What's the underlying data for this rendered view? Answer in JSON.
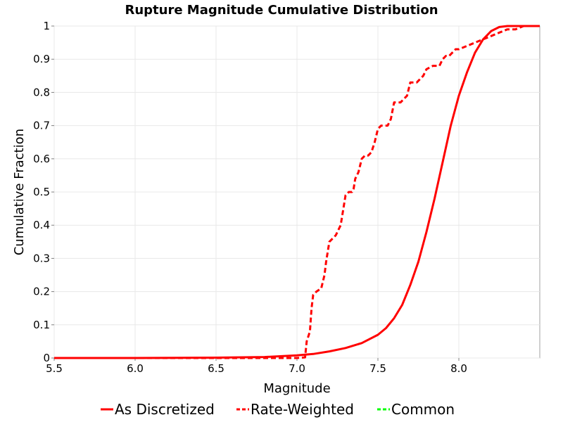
{
  "chart_data": {
    "type": "line",
    "title": "Rupture Magnitude Cumulative Distribution",
    "xlabel": "Magnitude",
    "ylabel": "Cumulative Fraction",
    "xlim": [
      5.5,
      8.5
    ],
    "ylim": [
      0,
      1
    ],
    "x_ticks": [
      "5.5",
      "6.0",
      "6.5",
      "7.0",
      "7.5",
      "8.0"
    ],
    "y_ticks": [
      "0",
      "0.1",
      "0.2",
      "0.3",
      "0.4",
      "0.5",
      "0.6",
      "0.7",
      "0.8",
      "0.9",
      "1"
    ],
    "x_tick_values": [
      5.5,
      6.0,
      6.5,
      7.0,
      7.5,
      8.0
    ],
    "y_tick_values": [
      0,
      0.1,
      0.2,
      0.3,
      0.4,
      0.5,
      0.6,
      0.7,
      0.8,
      0.9,
      1
    ],
    "grid": true,
    "legend_position": "bottom",
    "series": [
      {
        "name": "As Discretized",
        "color": "#ff0000",
        "style": "solid",
        "x": [
          5.5,
          6.0,
          6.5,
          6.8,
          7.0,
          7.1,
          7.2,
          7.3,
          7.4,
          7.5,
          7.55,
          7.6,
          7.65,
          7.7,
          7.75,
          7.8,
          7.85,
          7.9,
          7.95,
          8.0,
          8.05,
          8.1,
          8.15,
          8.2,
          8.25,
          8.3,
          8.5
        ],
        "y": [
          0.0,
          0.0,
          0.001,
          0.003,
          0.008,
          0.012,
          0.02,
          0.03,
          0.045,
          0.07,
          0.09,
          0.12,
          0.16,
          0.22,
          0.29,
          0.38,
          0.48,
          0.59,
          0.7,
          0.79,
          0.86,
          0.92,
          0.96,
          0.985,
          0.997,
          1.0,
          1.0
        ]
      },
      {
        "name": "Rate-Weighted",
        "color": "#ff0000",
        "style": "dashed",
        "x": [
          5.5,
          6.5,
          7.0,
          7.05,
          7.06,
          7.08,
          7.09,
          7.1,
          7.12,
          7.15,
          7.17,
          7.18,
          7.2,
          7.22,
          7.24,
          7.26,
          7.27,
          7.28,
          7.3,
          7.32,
          7.34,
          7.35,
          7.36,
          7.38,
          7.4,
          7.42,
          7.44,
          7.46,
          7.48,
          7.5,
          7.52,
          7.54,
          7.56,
          7.58,
          7.6,
          7.62,
          7.64,
          7.66,
          7.68,
          7.7,
          7.72,
          7.74,
          7.76,
          7.78,
          7.8,
          7.84,
          7.86,
          7.88,
          7.9,
          7.92,
          7.94,
          7.96,
          7.98,
          8.0,
          8.05,
          8.1,
          8.15,
          8.2,
          8.25,
          8.3,
          8.35,
          8.4,
          8.45,
          8.5
        ],
        "y": [
          0.0,
          0.0,
          0.0,
          0.002,
          0.05,
          0.08,
          0.15,
          0.19,
          0.2,
          0.21,
          0.25,
          0.29,
          0.35,
          0.36,
          0.37,
          0.39,
          0.4,
          0.43,
          0.49,
          0.5,
          0.5,
          0.51,
          0.54,
          0.56,
          0.6,
          0.61,
          0.61,
          0.62,
          0.65,
          0.69,
          0.7,
          0.7,
          0.7,
          0.72,
          0.77,
          0.77,
          0.77,
          0.78,
          0.79,
          0.83,
          0.83,
          0.83,
          0.84,
          0.85,
          0.87,
          0.88,
          0.88,
          0.88,
          0.9,
          0.91,
          0.91,
          0.92,
          0.93,
          0.93,
          0.94,
          0.95,
          0.96,
          0.97,
          0.98,
          0.99,
          0.99,
          1.0,
          1.0,
          1.0
        ]
      },
      {
        "name": "Common",
        "color": "#00ff00",
        "style": "dashed",
        "x": [],
        "y": []
      }
    ]
  }
}
